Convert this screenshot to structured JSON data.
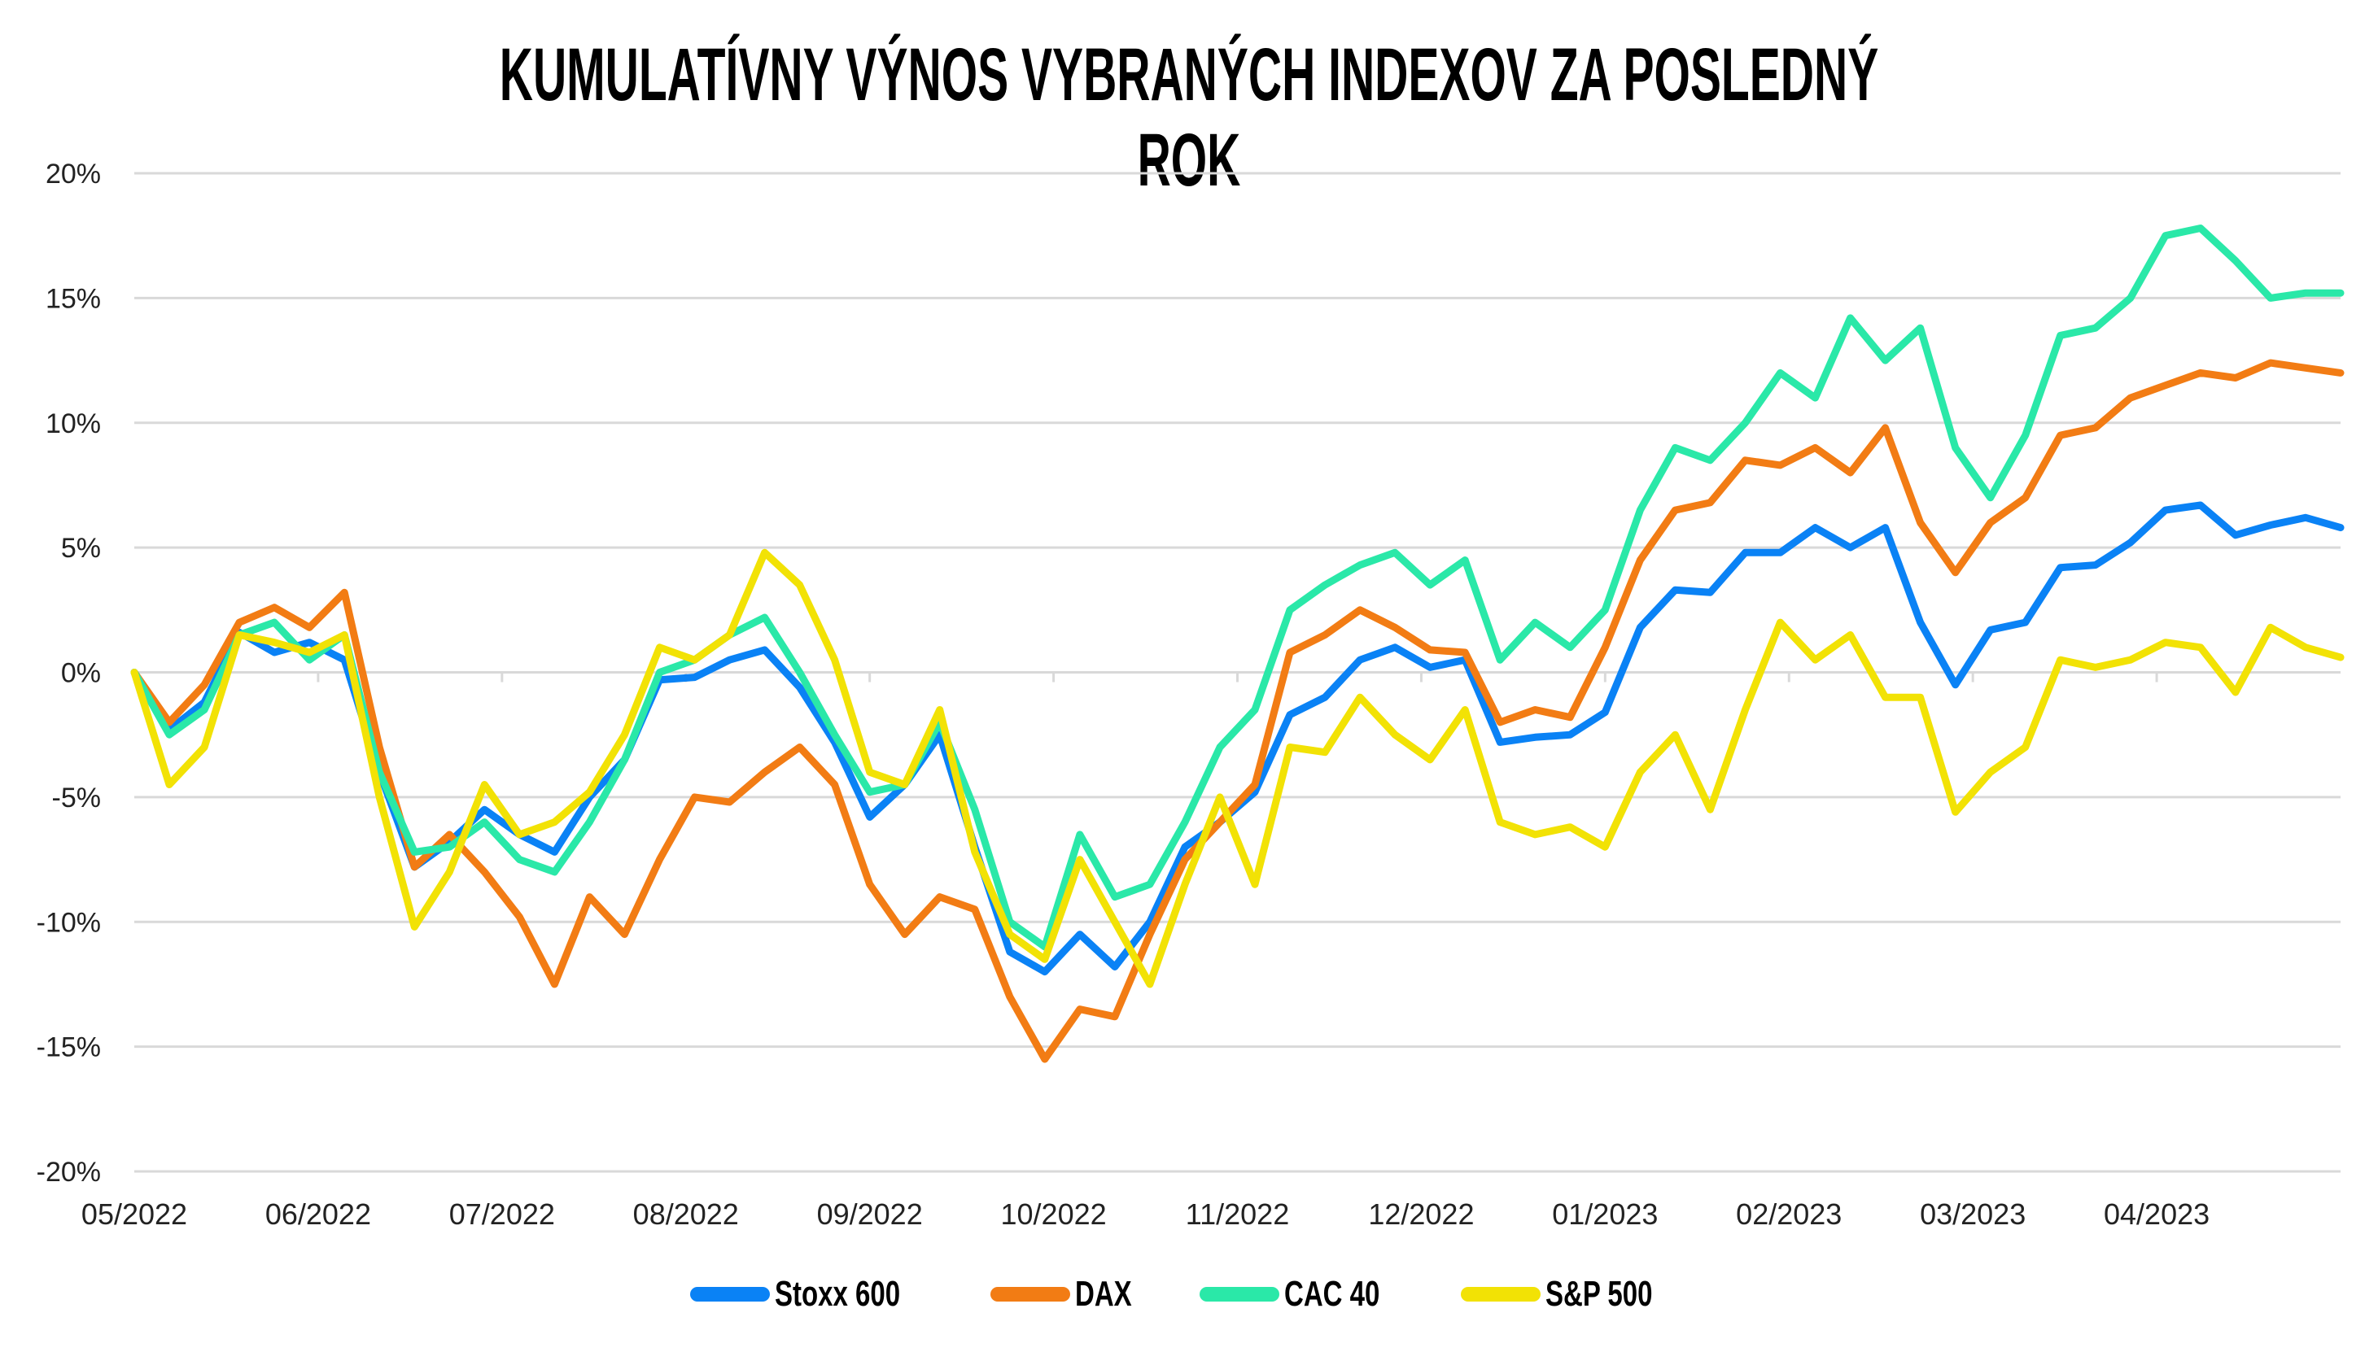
{
  "chart_data": {
    "type": "line",
    "title": "KUMULATÍVNY VÝNOS VYBRANÝCH INDEXOV ZA POSLEDNÝ ROK",
    "xlabel": "",
    "ylabel": "",
    "ylim": [
      -20,
      20
    ],
    "yticks": [
      "20%",
      "15%",
      "10%",
      "5%",
      "0%",
      "-5%",
      "-10%",
      "-15%",
      "-20%"
    ],
    "xticks": [
      "05/2022",
      "06/2022",
      "07/2022",
      "08/2022",
      "09/2022",
      "10/2022",
      "11/2022",
      "12/2022",
      "01/2023",
      "02/2023",
      "03/2023",
      "04/2023"
    ],
    "grid": true,
    "legend_position": "bottom",
    "series": [
      {
        "name": "Stoxx 600",
        "color": "#0A82F5",
        "values": [
          0,
          -2.3,
          -1.2,
          1.6,
          0.8,
          1.2,
          0.5,
          -4.0,
          -7.8,
          -6.8,
          -5.5,
          -6.5,
          -7.2,
          -5.0,
          -3.5,
          -0.3,
          -0.2,
          0.5,
          0.9,
          -0.6,
          -2.8,
          -5.8,
          -4.5,
          -2.5,
          -7.0,
          -11.2,
          -12.0,
          -10.5,
          -11.8,
          -10.0,
          -7.0,
          -6.0,
          -4.8,
          -1.7,
          -1.0,
          0.5,
          1.0,
          0.2,
          0.5,
          -2.8,
          -2.6,
          -2.5,
          -1.6,
          1.8,
          3.3,
          3.2,
          4.8,
          4.8,
          5.8,
          5.0,
          5.8,
          2.0,
          -0.5,
          1.7,
          2.0,
          4.2,
          4.3,
          5.2,
          6.5,
          6.7,
          5.5,
          5.9,
          6.2,
          5.8
        ]
      },
      {
        "name": "DAX",
        "color": "#F27C14",
        "values": [
          0,
          -2.0,
          -0.5,
          2.0,
          2.6,
          1.8,
          3.2,
          -3.0,
          -7.8,
          -6.5,
          -8.0,
          -9.8,
          -12.5,
          -9.0,
          -10.5,
          -7.5,
          -5.0,
          -5.2,
          -4.0,
          -3.0,
          -4.5,
          -8.5,
          -10.5,
          -9.0,
          -9.5,
          -13.0,
          -15.5,
          -13.5,
          -13.8,
          -10.5,
          -7.5,
          -6.0,
          -4.5,
          0.8,
          1.5,
          2.5,
          1.8,
          0.9,
          0.8,
          -2.0,
          -1.5,
          -1.8,
          1.0,
          4.5,
          6.5,
          6.8,
          8.5,
          8.3,
          9.0,
          8.0,
          9.8,
          6.0,
          4.0,
          6.0,
          7.0,
          9.5,
          9.8,
          11.0,
          11.5,
          12.0,
          11.8,
          12.4,
          12.2,
          12.0
        ]
      },
      {
        "name": "CAC 40",
        "color": "#2AE8A8",
        "values": [
          0,
          -2.5,
          -1.5,
          1.5,
          2.0,
          0.5,
          1.5,
          -4.0,
          -7.2,
          -7.0,
          -6.0,
          -7.5,
          -8.0,
          -6.0,
          -3.5,
          0.0,
          0.5,
          1.5,
          2.2,
          0.0,
          -2.5,
          -4.8,
          -4.5,
          -2.0,
          -5.5,
          -10.0,
          -11.0,
          -6.5,
          -9.0,
          -8.5,
          -6.0,
          -3.0,
          -1.5,
          2.5,
          3.5,
          4.3,
          4.8,
          3.5,
          4.5,
          0.5,
          2.0,
          1.0,
          2.5,
          6.5,
          9.0,
          8.5,
          10.0,
          12.0,
          11.0,
          14.2,
          12.5,
          13.8,
          9.0,
          7.0,
          9.5,
          13.5,
          13.8,
          15.0,
          17.5,
          17.8,
          16.5,
          15.0,
          15.2,
          15.2
        ]
      },
      {
        "name": "S&P 500",
        "color": "#F2E205",
        "values": [
          0,
          -4.5,
          -3.0,
          1.5,
          1.2,
          0.8,
          1.5,
          -5.0,
          -10.2,
          -8.0,
          -4.5,
          -6.5,
          -6.0,
          -4.8,
          -2.5,
          1.0,
          0.5,
          1.5,
          4.8,
          3.5,
          0.5,
          -4.0,
          -4.5,
          -1.5,
          -7.2,
          -10.5,
          -11.5,
          -7.5,
          -10.0,
          -12.5,
          -8.5,
          -5.0,
          -8.5,
          -3.0,
          -3.2,
          -1.0,
          -2.5,
          -3.5,
          -1.5,
          -6.0,
          -6.5,
          -6.2,
          -7.0,
          -4.0,
          -2.5,
          -5.5,
          -1.5,
          2.0,
          0.5,
          1.5,
          -1.0,
          -1.0,
          -5.6,
          -4.0,
          -3.0,
          0.5,
          0.2,
          0.5,
          1.2,
          1.0,
          -0.8,
          1.8,
          1.0,
          0.6
        ]
      }
    ]
  },
  "legend": {
    "items": [
      {
        "label": "Stoxx 600",
        "color": "#0A82F5"
      },
      {
        "label": "DAX",
        "color": "#F27C14"
      },
      {
        "label": "CAC 40",
        "color": "#2AE8A8"
      },
      {
        "label": "S&P 500",
        "color": "#F2E205"
      }
    ]
  }
}
